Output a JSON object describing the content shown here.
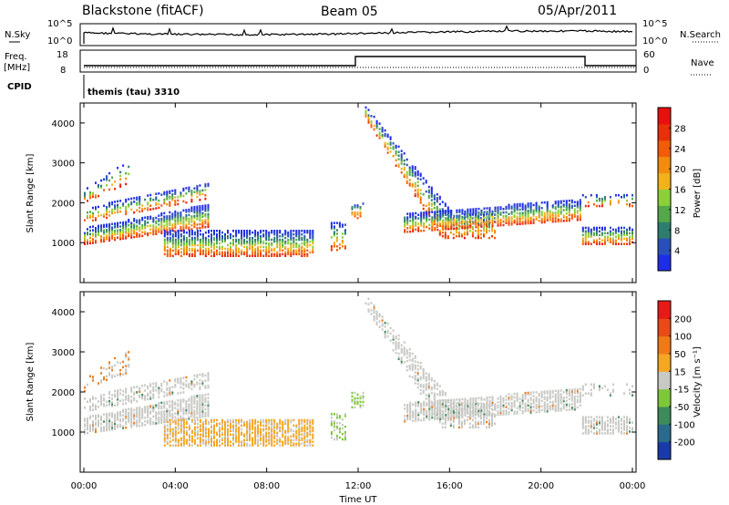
{
  "header": {
    "station": "Blackstone (fitACF)",
    "beam": "Beam 05",
    "date": "05/Apr/2011"
  },
  "side_labels": {
    "nsky": "N.Sky",
    "nsky_scale_top": "10^5",
    "nsky_scale_bottom": "10^0",
    "nsearch": "N.Search",
    "nsearch_scale_top": "10^5",
    "nsearch_scale_bottom": "10^0",
    "freq_line1": "Freq.",
    "freq_line2": "[MHz]",
    "freq_top": "18",
    "freq_bottom": "8",
    "nave": "Nave",
    "nave_top": "60",
    "nave_bottom": "0",
    "cpid": "CPID",
    "cpid_value": "themis (tau) 3310"
  },
  "time_axis": {
    "label": "Time UT",
    "ticks": [
      "00:00",
      "04:00",
      "08:00",
      "12:00",
      "16:00",
      "20:00",
      "00:00"
    ]
  },
  "chart_data": [
    {
      "type": "heatmap",
      "name": "power",
      "ylabel": "Slant Range [km]",
      "yticks": [
        1000,
        2000,
        3000,
        4000
      ],
      "ylim": [
        0,
        4500
      ],
      "xlim_hours": [
        0,
        24
      ],
      "colorbar": {
        "label": "Power [dB]",
        "ticks": [
          "4",
          "8",
          "12",
          "16",
          "20",
          "24",
          "28"
        ],
        "colors": [
          "#1e2de8",
          "#2a4fb8",
          "#2e7d6e",
          "#54a84a",
          "#8ccf3a",
          "#f2b21c",
          "#f28c0e",
          "#f25b0a",
          "#e8300a",
          "#e80f0f"
        ]
      }
    },
    {
      "type": "heatmap",
      "name": "velocity",
      "ylabel": "Slant Range [km]",
      "yticks": [
        1000,
        2000,
        3000,
        4000
      ],
      "ylim": [
        0,
        4500
      ],
      "xlim_hours": [
        0,
        24
      ],
      "colorbar": {
        "label": "Velocity [m s⁻¹]",
        "ticks": [
          "200",
          "100",
          "50",
          "15",
          "-15",
          "-50",
          "-100",
          "-200"
        ],
        "colors": [
          "#1a3aa8",
          "#2a6a8c",
          "#3f8a5a",
          "#7ec63a",
          "#c8c8c4",
          "#f5a623",
          "#f07a18",
          "#e84a18",
          "#e81a18"
        ]
      }
    }
  ]
}
